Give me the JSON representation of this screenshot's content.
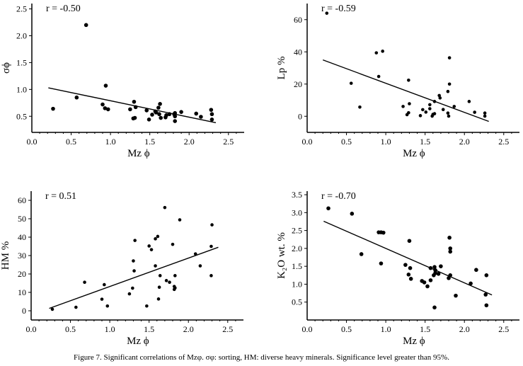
{
  "caption": "Figure 7. Significant correlations of Mzφ. σφ: sorting, HM: diverse heavy minerals. Significance level greater than 95%.",
  "chart_data": [
    {
      "type": "scatter",
      "annotation": "r = -0.50",
      "xlabel": "Mz ϕ",
      "ylabel": "σϕ",
      "xlim": [
        0,
        2.7
      ],
      "ylim": [
        0.2,
        2.6
      ],
      "xticks": [
        "0.0",
        "0.5",
        "1.0",
        "1.5",
        "2.0",
        "2.5"
      ],
      "yticks": [
        "0.5",
        "1.0",
        "1.5",
        "2.0",
        "2.5"
      ],
      "points": [
        [
          0.27,
          0.64
        ],
        [
          0.57,
          0.85
        ],
        [
          0.69,
          2.2
        ],
        [
          0.9,
          0.72
        ],
        [
          0.94,
          1.07
        ],
        [
          0.93,
          0.65
        ],
        [
          0.97,
          0.63
        ],
        [
          1.25,
          0.63
        ],
        [
          1.3,
          0.77
        ],
        [
          1.32,
          0.67
        ],
        [
          1.29,
          0.46
        ],
        [
          1.31,
          0.47
        ],
        [
          1.46,
          0.61
        ],
        [
          1.49,
          0.44
        ],
        [
          1.53,
          0.53
        ],
        [
          1.57,
          0.59
        ],
        [
          1.58,
          0.57
        ],
        [
          1.61,
          0.66
        ],
        [
          1.62,
          0.54
        ],
        [
          1.63,
          0.73
        ],
        [
          1.64,
          0.47
        ],
        [
          1.7,
          0.48
        ],
        [
          1.71,
          0.52
        ],
        [
          1.75,
          0.54
        ],
        [
          1.81,
          0.54
        ],
        [
          1.82,
          0.56
        ],
        [
          1.82,
          0.5
        ],
        [
          1.82,
          0.41
        ],
        [
          1.9,
          0.58
        ],
        [
          2.09,
          0.55
        ],
        [
          2.15,
          0.49
        ],
        [
          2.28,
          0.62
        ],
        [
          2.29,
          0.54
        ],
        [
          2.29,
          0.44
        ]
      ],
      "trendline": [
        [
          0.21,
          1.03
        ],
        [
          2.34,
          0.38
        ]
      ]
    },
    {
      "type": "scatter",
      "annotation": "r = -0.59",
      "xlabel": "Mz ϕ",
      "ylabel": "Lp %",
      "xlim": [
        0,
        2.7
      ],
      "ylim": [
        -10,
        70
      ],
      "xticks": [
        "0.0",
        "0.5",
        "1.0",
        "1.5",
        "2.0",
        "2.5"
      ],
      "yticks": [
        "0",
        "20",
        "40",
        "60"
      ],
      "points": [
        [
          0.25,
          64
        ],
        [
          0.56,
          20.5
        ],
        [
          0.67,
          5.7
        ],
        [
          0.88,
          39.4
        ],
        [
          0.96,
          40.4
        ],
        [
          0.91,
          24.7
        ],
        [
          1.22,
          6.1
        ],
        [
          1.27,
          1
        ],
        [
          1.29,
          2.2
        ],
        [
          1.29,
          22.4
        ],
        [
          1.3,
          7.8
        ],
        [
          1.44,
          0.4
        ],
        [
          1.47,
          4.1
        ],
        [
          1.51,
          2.6
        ],
        [
          1.56,
          4.7
        ],
        [
          1.56,
          7.2
        ],
        [
          1.59,
          0.1
        ],
        [
          1.6,
          1.2
        ],
        [
          1.62,
          1.6
        ],
        [
          1.62,
          9.2
        ],
        [
          1.68,
          12.9
        ],
        [
          1.69,
          11.4
        ],
        [
          1.73,
          4.2
        ],
        [
          1.79,
          2
        ],
        [
          1.79,
          15.4
        ],
        [
          1.8,
          0.1
        ],
        [
          1.81,
          36.3
        ],
        [
          1.81,
          20
        ],
        [
          1.87,
          6.1
        ],
        [
          2.06,
          9.2
        ],
        [
          2.13,
          2.5
        ],
        [
          2.26,
          2
        ],
        [
          2.26,
          0.1
        ]
      ],
      "trendline": [
        [
          0.2,
          35
        ],
        [
          2.31,
          -3.2
        ]
      ]
    },
    {
      "type": "scatter",
      "annotation": "r = 0.51",
      "xlabel": "Mz ϕ",
      "ylabel": "HM  %",
      "xlim": [
        0,
        2.7
      ],
      "ylim": [
        -5,
        65
      ],
      "xticks": [
        "0.0",
        "0.5",
        "1.0",
        "1.5",
        "2.0",
        "2.5"
      ],
      "yticks": [
        "0",
        "10",
        "20",
        "30",
        "40",
        "50",
        "60"
      ],
      "points": [
        [
          0.27,
          0.8
        ],
        [
          0.57,
          1.9
        ],
        [
          0.68,
          15.5
        ],
        [
          0.9,
          6.3
        ],
        [
          0.93,
          14.2
        ],
        [
          0.97,
          2.6
        ],
        [
          1.25,
          9.2
        ],
        [
          1.29,
          12.3
        ],
        [
          1.3,
          27.1
        ],
        [
          1.31,
          21.7
        ],
        [
          1.32,
          38.2
        ],
        [
          1.47,
          2.6
        ],
        [
          1.5,
          35.2
        ],
        [
          1.53,
          33.2
        ],
        [
          1.58,
          24.4
        ],
        [
          1.58,
          39.1
        ],
        [
          1.61,
          40.4
        ],
        [
          1.62,
          6.4
        ],
        [
          1.63,
          12.8
        ],
        [
          1.64,
          19.1
        ],
        [
          1.7,
          56.1
        ],
        [
          1.72,
          16.4
        ],
        [
          1.76,
          15.5
        ],
        [
          1.8,
          36.1
        ],
        [
          1.82,
          13.2
        ],
        [
          1.82,
          11.6
        ],
        [
          1.83,
          12.4
        ],
        [
          1.83,
          19.1
        ],
        [
          1.89,
          49.4
        ],
        [
          2.09,
          30.9
        ],
        [
          2.15,
          24.4
        ],
        [
          2.29,
          35
        ],
        [
          2.29,
          19.1
        ],
        [
          2.3,
          46.7
        ]
      ],
      "trendline": [
        [
          0.23,
          1.3
        ],
        [
          2.38,
          34.5
        ]
      ]
    },
    {
      "type": "scatter",
      "annotation": "r = -0.70",
      "xlabel": "Mz ϕ",
      "ylabel": "K2O  wt. %",
      "xlim": [
        0,
        2.7
      ],
      "ylim": [
        0,
        3.6
      ],
      "xticks": [
        "0.0",
        "0.5",
        "1.0",
        "1.5",
        "2.0",
        "2.5"
      ],
      "yticks": [
        "0.5",
        "1.0",
        "1.5",
        "2.0",
        "2.5",
        "3.0",
        "3.5"
      ],
      "points": [
        [
          0.27,
          3.12
        ],
        [
          0.57,
          2.97
        ],
        [
          0.69,
          1.84
        ],
        [
          0.91,
          2.45
        ],
        [
          0.94,
          2.45
        ],
        [
          0.97,
          2.44
        ],
        [
          0.94,
          1.58
        ],
        [
          1.25,
          1.54
        ],
        [
          1.29,
          1.27
        ],
        [
          1.3,
          2.21
        ],
        [
          1.31,
          1.45
        ],
        [
          1.32,
          1.15
        ],
        [
          1.46,
          1.09
        ],
        [
          1.49,
          1.05
        ],
        [
          1.53,
          0.94
        ],
        [
          1.57,
          1.45
        ],
        [
          1.57,
          1.11
        ],
        [
          1.61,
          1.25
        ],
        [
          1.62,
          1.48
        ],
        [
          1.63,
          1.39
        ],
        [
          1.63,
          1.31
        ],
        [
          1.62,
          0.35
        ],
        [
          1.7,
          1.5
        ],
        [
          1.67,
          1.29
        ],
        [
          1.8,
          1.17
        ],
        [
          1.81,
          2.3
        ],
        [
          1.82,
          1.25
        ],
        [
          1.82,
          2.0
        ],
        [
          1.82,
          1.91
        ],
        [
          1.89,
          0.68
        ],
        [
          2.08,
          1.02
        ],
        [
          2.15,
          1.4
        ],
        [
          2.28,
          1.25
        ],
        [
          2.27,
          0.71
        ],
        [
          2.28,
          0.41
        ]
      ],
      "trendline": [
        [
          0.21,
          2.76
        ],
        [
          2.35,
          0.7
        ]
      ]
    }
  ]
}
